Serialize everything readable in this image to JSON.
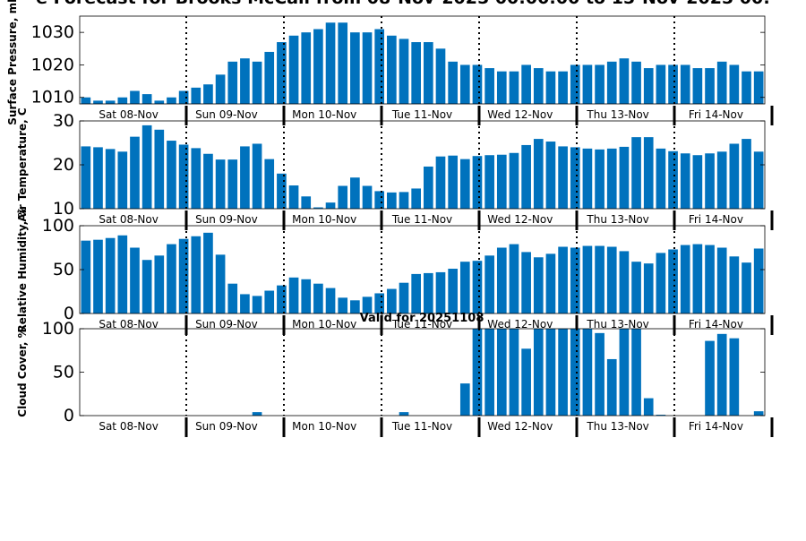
{
  "chart_data": {
    "title": "e Forecast for Brooks McCall from 08-Nov-2025 00:00:00 to 15-Nov-2025 00:",
    "footer_label": "Valid for 20251108",
    "days": [
      "Sat 08-Nov",
      "Sun 09-Nov",
      "Mon 10-Nov",
      "Tue 11-Nov",
      "Wed 12-Nov",
      "Thu 13-Nov",
      "Fri 14-Nov"
    ],
    "color": "#0072BD",
    "panels": [
      {
        "type": "bar",
        "name": "pressure",
        "ylabel": "Surface Pressure, mb",
        "ylim": [
          1008,
          1035
        ],
        "yticks": [
          "1010",
          "1020",
          "1030"
        ],
        "values": [
          1010,
          1009,
          1009,
          1010,
          1012,
          1011,
          1009,
          1010,
          1012,
          1013,
          1014,
          1017,
          1021,
          1022,
          1021,
          1024,
          1027,
          1029,
          1030,
          1031,
          1033,
          1033,
          1030,
          1030,
          1031,
          1029,
          1028,
          1027,
          1027,
          1025,
          1021,
          1020,
          1020,
          1019,
          1018,
          1018,
          1020,
          1019,
          1018,
          1018,
          1020,
          1020,
          1020,
          1021,
          1022,
          1021,
          1019,
          1020,
          1020,
          1020,
          1019,
          1019,
          1021,
          1020,
          1018,
          1018
        ]
      },
      {
        "type": "bar",
        "name": "temperature",
        "ylabel": "Air Temperature, C",
        "ylim": [
          10,
          30
        ],
        "yticks": [
          "10",
          "20",
          "30"
        ],
        "values": [
          24.2,
          24,
          23.6,
          23,
          26.4,
          29,
          28,
          25.5,
          24.6,
          23.8,
          22.5,
          21.2,
          21.2,
          24.2,
          24.8,
          21.3,
          18,
          15.3,
          12.8,
          10.3,
          11.4,
          15.2,
          17.1,
          15.2,
          14,
          13.7,
          13.8,
          14.6,
          19.6,
          21.9,
          22.1,
          21.3,
          22,
          22.2,
          22.3,
          22.7,
          24.5,
          25.9,
          25.3,
          24.2,
          24,
          23.7,
          23.5,
          23.7,
          24.1,
          26.3,
          26.3,
          23.7,
          23.1,
          22.6,
          22.2,
          22.6,
          23,
          24.8,
          25.9,
          23
        ]
      },
      {
        "type": "bar",
        "name": "humidity",
        "ylabel": "Relative Humidity, %",
        "ylim": [
          0,
          100
        ],
        "yticks": [
          "0",
          "50",
          "100"
        ],
        "values": [
          83,
          84,
          86,
          89,
          75,
          61,
          66,
          79,
          85,
          88,
          92,
          67,
          34,
          22,
          20,
          26,
          32,
          41,
          39,
          34,
          29,
          18,
          15,
          19,
          23,
          28,
          35,
          45,
          46,
          47,
          51,
          59,
          60,
          66,
          75,
          79,
          70,
          64,
          68,
          76,
          75,
          77,
          77,
          76,
          71,
          59,
          57,
          69,
          73,
          78,
          79,
          78,
          75,
          65,
          58,
          74
        ]
      },
      {
        "type": "bar",
        "name": "cloud",
        "ylabel": "Cloud Cover, %",
        "ylim": [
          0,
          100
        ],
        "yticks": [
          "0",
          "50",
          "100"
        ],
        "values": [
          0,
          0,
          0,
          0,
          0,
          0,
          0,
          0,
          0,
          0,
          0,
          0,
          0,
          0,
          4,
          0,
          0,
          0,
          0,
          0,
          0,
          0,
          0,
          0,
          0,
          0,
          4,
          0,
          0,
          0,
          0,
          37,
          100,
          100,
          100,
          100,
          77,
          100,
          100,
          100,
          100,
          100,
          95,
          65,
          100,
          100,
          20,
          1,
          0,
          0,
          0,
          86,
          94,
          89,
          0,
          5
        ]
      }
    ]
  }
}
